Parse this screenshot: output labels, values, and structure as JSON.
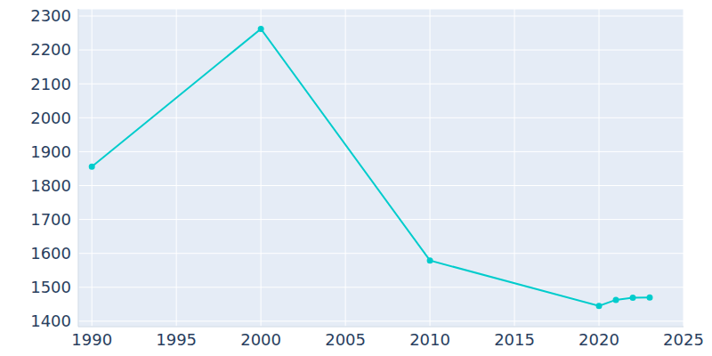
{
  "chart_data": {
    "type": "line",
    "x": [
      1990,
      2000,
      2010,
      2020,
      2021,
      2022,
      2023
    ],
    "values": [
      1856,
      2262,
      1579,
      1445,
      1463,
      1469,
      1470
    ],
    "color": "#00cccc",
    "marker": "circle",
    "xlim": [
      1989.2,
      2025
    ],
    "xticks": [
      1990,
      1995,
      2000,
      2005,
      2010,
      2015,
      2020,
      2025
    ],
    "ylim": [
      1384,
      2321
    ],
    "yticks": [
      1400,
      1500,
      1600,
      1700,
      1800,
      1900,
      2000,
      2100,
      2200,
      2300
    ],
    "grid": true
  }
}
